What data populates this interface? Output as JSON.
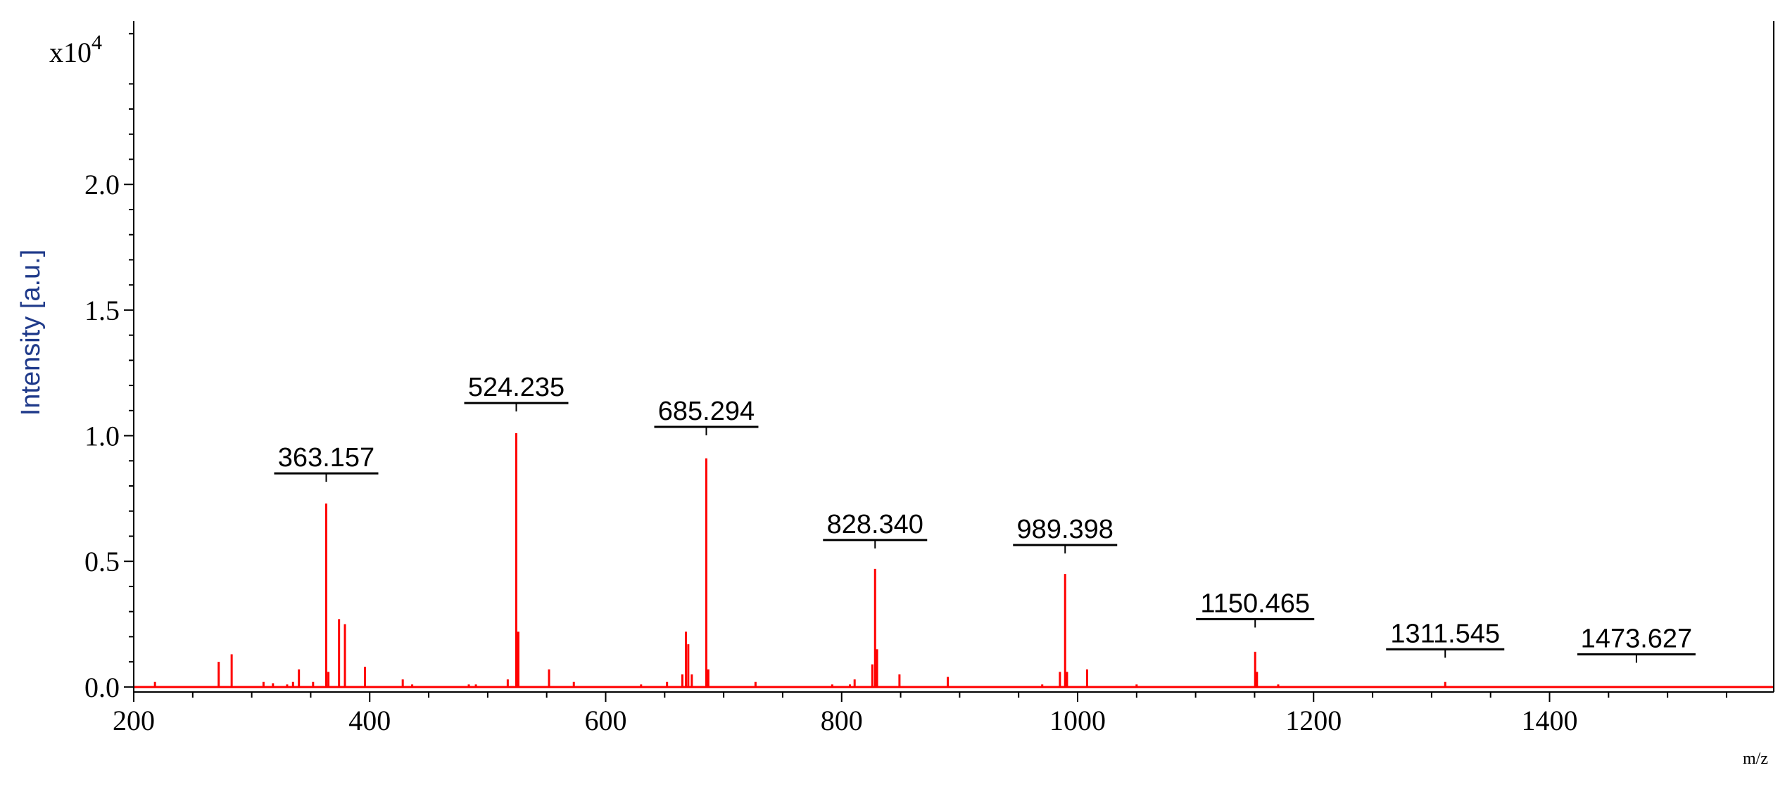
{
  "chart_data": {
    "type": "line",
    "ylabel": "Intensity [a.u.]",
    "xlabel": "m/z",
    "y_multiplier": "x10",
    "y_multiplier_exp": "4",
    "xlim": [
      200,
      1590
    ],
    "ylim": [
      -0.02,
      2.65
    ],
    "x_ticks": [
      200,
      400,
      600,
      800,
      1000,
      1200,
      1400
    ],
    "y_ticks": [
      0.0,
      0.5,
      1.0,
      1.5,
      2.0
    ],
    "y_tick_labels": [
      "0.0",
      "0.5",
      "1.0",
      "1.5",
      "2.0"
    ],
    "series": [
      {
        "color": "#ff0000",
        "peaks": [
          {
            "mz": 218,
            "i": 0.02
          },
          {
            "mz": 272,
            "i": 0.1
          },
          {
            "mz": 283,
            "i": 0.13
          },
          {
            "mz": 310,
            "i": 0.02
          },
          {
            "mz": 318,
            "i": 0.015
          },
          {
            "mz": 330,
            "i": 0.01
          },
          {
            "mz": 335,
            "i": 0.02
          },
          {
            "mz": 340,
            "i": 0.07
          },
          {
            "mz": 352,
            "i": 0.02
          },
          {
            "mz": 363.157,
            "i": 0.73
          },
          {
            "mz": 365,
            "i": 0.06
          },
          {
            "mz": 374,
            "i": 0.27
          },
          {
            "mz": 379,
            "i": 0.25
          },
          {
            "mz": 396,
            "i": 0.08
          },
          {
            "mz": 428,
            "i": 0.03
          },
          {
            "mz": 436,
            "i": 0.01
          },
          {
            "mz": 484,
            "i": 0.01
          },
          {
            "mz": 490,
            "i": 0.01
          },
          {
            "mz": 517,
            "i": 0.03
          },
          {
            "mz": 524.235,
            "i": 1.01
          },
          {
            "mz": 526,
            "i": 0.22
          },
          {
            "mz": 552,
            "i": 0.07
          },
          {
            "mz": 573,
            "i": 0.02
          },
          {
            "mz": 630,
            "i": 0.01
          },
          {
            "mz": 652,
            "i": 0.02
          },
          {
            "mz": 665,
            "i": 0.05
          },
          {
            "mz": 668,
            "i": 0.22
          },
          {
            "mz": 670,
            "i": 0.17
          },
          {
            "mz": 673,
            "i": 0.05
          },
          {
            "mz": 685.294,
            "i": 0.91
          },
          {
            "mz": 687,
            "i": 0.07
          },
          {
            "mz": 727,
            "i": 0.02
          },
          {
            "mz": 792,
            "i": 0.01
          },
          {
            "mz": 807,
            "i": 0.01
          },
          {
            "mz": 811,
            "i": 0.03
          },
          {
            "mz": 826,
            "i": 0.09
          },
          {
            "mz": 828.34,
            "i": 0.47
          },
          {
            "mz": 830,
            "i": 0.15
          },
          {
            "mz": 849,
            "i": 0.05
          },
          {
            "mz": 890,
            "i": 0.04
          },
          {
            "mz": 970,
            "i": 0.01
          },
          {
            "mz": 985,
            "i": 0.06
          },
          {
            "mz": 989.398,
            "i": 0.45
          },
          {
            "mz": 991,
            "i": 0.06
          },
          {
            "mz": 1008,
            "i": 0.07
          },
          {
            "mz": 1050,
            "i": 0.01
          },
          {
            "mz": 1150.465,
            "i": 0.14
          },
          {
            "mz": 1152,
            "i": 0.06
          },
          {
            "mz": 1170,
            "i": 0.01
          },
          {
            "mz": 1311.545,
            "i": 0.02
          }
        ]
      }
    ],
    "annotations": [
      {
        "label": "363.157",
        "mz": 363.157,
        "y": 0.85
      },
      {
        "label": "524.235",
        "mz": 524.235,
        "y": 1.13
      },
      {
        "label": "685.294",
        "mz": 685.294,
        "y": 1.035
      },
      {
        "label": "828.340",
        "mz": 828.34,
        "y": 0.585
      },
      {
        "label": "989.398",
        "mz": 989.398,
        "y": 0.565
      },
      {
        "label": "1150.465",
        "mz": 1150.465,
        "y": 0.27
      },
      {
        "label": "1311.545",
        "mz": 1311.545,
        "y": 0.15
      },
      {
        "label": "1473.627",
        "mz": 1473.627,
        "y": 0.13
      }
    ]
  }
}
